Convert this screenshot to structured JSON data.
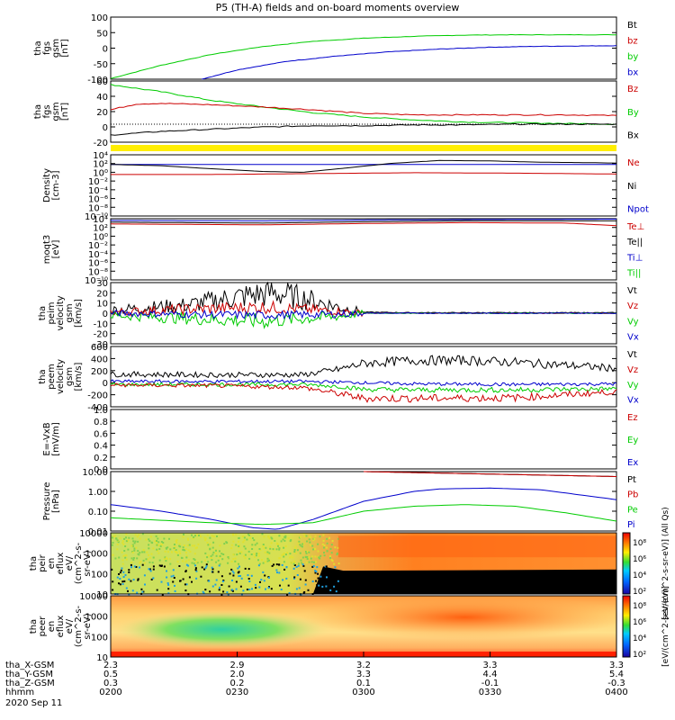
{
  "title": "P5 (TH-A) fields and on-board moments overview",
  "x_axis": {
    "tick_times": [
      "0200",
      "0230",
      "0300",
      "0330",
      "0400"
    ],
    "rows": [
      {
        "label": "tha_X-GSM",
        "values": [
          "2.3",
          "2.9",
          "3.2",
          "3.3",
          "3.3"
        ]
      },
      {
        "label": "tha_Y-GSM",
        "values": [
          "0.5",
          "2.0",
          "3.3",
          "4.4",
          "5.4"
        ]
      },
      {
        "label": "tha_Z-GSM",
        "values": [
          "0.3",
          "0.2",
          "0.1",
          "-0.1",
          "-0.3"
        ]
      },
      {
        "label": "hhmm",
        "values": [
          "0200",
          "0230",
          "0300",
          "0330",
          "0400"
        ]
      }
    ],
    "date": "2020 Sep 11"
  },
  "colors": {
    "black": "#000000",
    "red": "#cc0000",
    "green": "#00cc00",
    "blue": "#0000cc",
    "yellow": "#ffee00"
  },
  "chart_data": [
    {
      "type": "line",
      "ylabel": [
        "tha",
        "fgs",
        "gsm",
        "[nT]"
      ],
      "yticks": [
        "100",
        "50",
        "0",
        "-50",
        "-100"
      ],
      "ylim": [
        -100,
        100
      ],
      "legend": [
        {
          "text": "Bt",
          "color": "black"
        },
        {
          "text": "bz",
          "color": "red"
        },
        {
          "text": "by",
          "color": "green"
        },
        {
          "text": "bx",
          "color": "blue"
        }
      ],
      "series": [
        {
          "name": "by",
          "color": "green",
          "x": [
            0,
            0.1,
            0.2,
            0.3,
            0.4,
            0.5,
            0.6,
            0.7,
            0.8,
            1.0
          ],
          "y": [
            -98,
            -55,
            -20,
            5,
            22,
            32,
            38,
            42,
            43,
            43
          ]
        },
        {
          "name": "bx",
          "color": "blue",
          "x": [
            0.18,
            0.25,
            0.35,
            0.45,
            0.55,
            0.65,
            0.75,
            0.85,
            1.0
          ],
          "y": [
            -100,
            -70,
            -42,
            -25,
            -12,
            -3,
            3,
            6,
            8
          ]
        }
      ]
    },
    {
      "type": "line",
      "ylabel": [
        "tha",
        "fgs",
        "gsm",
        "[nT]"
      ],
      "yticks": [
        "60",
        "40",
        "20",
        "0",
        "-20"
      ],
      "ylim": [
        -25,
        60
      ],
      "legend": [
        {
          "text": "Bz",
          "color": "red"
        },
        {
          "text": "By",
          "color": "green"
        },
        {
          "text": "Bx",
          "color": "black"
        }
      ],
      "series": [
        {
          "name": "By",
          "color": "green",
          "x": [
            0,
            0.1,
            0.2,
            0.3,
            0.4,
            0.5,
            0.6,
            0.7,
            0.8,
            0.9,
            1.0
          ],
          "y": [
            55,
            45,
            33,
            24,
            16,
            10,
            6,
            3,
            2,
            1,
            0
          ]
        },
        {
          "name": "Bz",
          "color": "red",
          "x": [
            0,
            0.05,
            0.1,
            0.2,
            0.3,
            0.4,
            0.5,
            0.6,
            0.7,
            0.8,
            0.9,
            1.0
          ],
          "y": [
            20,
            28,
            29,
            27,
            24,
            20,
            15,
            13,
            13,
            13,
            13,
            12
          ]
        },
        {
          "name": "Bx",
          "color": "black",
          "x": [
            0,
            0.1,
            0.2,
            0.3,
            0.4,
            0.5,
            0.6,
            0.7,
            0.8,
            0.9,
            1.0
          ],
          "y": [
            -15,
            -10,
            -7,
            -4,
            -2,
            -2,
            -1,
            -1,
            0,
            0,
            0
          ]
        }
      ]
    },
    {
      "type": "bar",
      "note": "quality flag strip",
      "color": "yellow"
    },
    {
      "type": "line",
      "ylabel": [
        "Density",
        "[cm-3]"
      ],
      "yticks": [
        "10⁴",
        "10²",
        "10⁰",
        "10⁻²",
        "10⁻⁴",
        "10⁻⁶",
        "10⁻⁸",
        "10⁻¹⁰"
      ],
      "yscale": "log",
      "ylim": [
        -10,
        4
      ],
      "legend": [
        {
          "text": "Ne",
          "color": "red"
        },
        {
          "text": "Ni",
          "color": "black"
        },
        {
          "text": "Npot",
          "color": "blue"
        }
      ],
      "series": [
        {
          "name": "Npot",
          "color": "blue",
          "x": [
            0,
            1
          ],
          "y": [
            1.8,
            1.8
          ]
        },
        {
          "name": "Ni",
          "color": "black",
          "x": [
            0,
            0.1,
            0.2,
            0.3,
            0.38,
            0.45,
            0.55,
            0.65,
            0.75,
            0.85,
            0.95,
            1.0
          ],
          "y": [
            1.8,
            1.5,
            0.8,
            0.2,
            0,
            0.8,
            2.0,
            2.7,
            2.6,
            2.3,
            2.2,
            2.1
          ]
        },
        {
          "name": "Ne",
          "color": "red",
          "x": [
            0,
            0.2,
            0.4,
            0.6,
            0.8,
            1.0
          ],
          "y": [
            -0.5,
            -0.5,
            -0.3,
            -0.1,
            -0.2,
            -0.4
          ]
        }
      ]
    },
    {
      "type": "line",
      "ylabel": [
        "moqt3",
        "[eV]"
      ],
      "yticks": [
        "10⁴",
        "10²",
        "10⁰",
        "10⁻²",
        "10⁻⁴",
        "10⁻⁶",
        "10⁻⁸",
        "10⁻¹⁰"
      ],
      "yscale": "log",
      "ylim": [
        -10,
        4
      ],
      "legend": [
        {
          "text": "Te⊥",
          "color": "red"
        },
        {
          "text": "Te||",
          "color": "black"
        },
        {
          "text": "Ti⊥",
          "color": "blue"
        },
        {
          "text": "Ti||",
          "color": "green"
        }
      ],
      "series": [
        {
          "name": "Ti⊥",
          "color": "blue",
          "x": [
            0,
            0.3,
            0.5,
            0.7,
            1.0
          ],
          "y": [
            3.6,
            3.5,
            3.7,
            3.8,
            3.9
          ]
        },
        {
          "name": "Te||",
          "color": "black",
          "x": [
            0,
            0.3,
            0.5,
            0.7,
            1.0
          ],
          "y": [
            3.2,
            3.0,
            3.3,
            3.5,
            3.5
          ]
        },
        {
          "name": "Te⊥",
          "color": "red",
          "x": [
            0,
            0.3,
            0.5,
            0.7,
            0.9,
            1.0
          ],
          "y": [
            2.8,
            2.6,
            2.9,
            3.1,
            3.0,
            2.4
          ]
        }
      ]
    },
    {
      "type": "line",
      "ylabel": [
        "tha",
        "peim",
        "velocity",
        "gsm",
        "[km/s]"
      ],
      "yticks": [
        "30",
        "20",
        "10",
        "0",
        "-10",
        "-20",
        "-30"
      ],
      "ylim": [
        -30,
        30
      ],
      "legend": [
        {
          "text": "Vt",
          "color": "black"
        },
        {
          "text": "Vz",
          "color": "red"
        },
        {
          "text": "Vy",
          "color": "green"
        },
        {
          "text": "Vx",
          "color": "blue"
        }
      ],
      "series": [
        {
          "name": "Vt",
          "color": "black",
          "x": [
            0,
            0.15,
            0.25,
            0.32,
            0.38,
            0.45,
            0.5,
            0.6,
            1.0
          ],
          "y": [
            3,
            8,
            16,
            20,
            15,
            6,
            1,
            0.5,
            0.5
          ]
        },
        {
          "name": "Vz",
          "color": "red",
          "x": [
            0,
            0.15,
            0.3,
            0.45,
            0.5,
            1.0
          ],
          "y": [
            1,
            4,
            6,
            2,
            0,
            0
          ]
        },
        {
          "name": "Vy",
          "color": "green",
          "x": [
            0,
            0.15,
            0.3,
            0.45,
            0.5,
            1.0
          ],
          "y": [
            -2,
            -5,
            -8,
            -3,
            0,
            0
          ]
        },
        {
          "name": "Vx",
          "color": "blue",
          "x": [
            0,
            0.15,
            0.3,
            0.45,
            0.5,
            1.0
          ],
          "y": [
            0,
            -1,
            -2,
            -1,
            0,
            0
          ]
        }
      ]
    },
    {
      "type": "line",
      "ylabel": [
        "tha",
        "peem",
        "velocity",
        "gsm",
        "[km/s]"
      ],
      "yticks": [
        "600",
        "400",
        "200",
        "0",
        "-200",
        "-400"
      ],
      "ylim": [
        -400,
        600
      ],
      "legend": [
        {
          "text": "Vt",
          "color": "black"
        },
        {
          "text": "Vz",
          "color": "red"
        },
        {
          "text": "Vy",
          "color": "green"
        },
        {
          "text": "Vx",
          "color": "blue"
        }
      ],
      "series": [
        {
          "name": "Vt",
          "color": "black",
          "x": [
            0,
            0.2,
            0.38,
            0.45,
            0.5,
            0.6,
            0.7,
            0.8,
            0.9,
            1.0
          ],
          "y": [
            140,
            130,
            130,
            220,
            320,
            370,
            370,
            340,
            290,
            240
          ]
        },
        {
          "name": "Vx",
          "color": "blue",
          "x": [
            0,
            0.2,
            0.38,
            0.45,
            0.5,
            0.6,
            0.8,
            1.0
          ],
          "y": [
            20,
            20,
            20,
            10,
            0,
            -20,
            -30,
            -20
          ]
        },
        {
          "name": "Vy",
          "color": "green",
          "x": [
            0,
            0.2,
            0.38,
            0.45,
            0.5,
            0.6,
            0.8,
            1.0
          ],
          "y": [
            -30,
            -30,
            -30,
            -60,
            -110,
            -120,
            -120,
            -100
          ]
        },
        {
          "name": "Vz",
          "color": "red",
          "x": [
            0,
            0.2,
            0.38,
            0.45,
            0.5,
            0.6,
            0.8,
            1.0
          ],
          "y": [
            -40,
            -50,
            -80,
            -180,
            -260,
            -260,
            -250,
            -150
          ]
        }
      ]
    },
    {
      "type": "line",
      "ylabel": [
        "E=-VxB",
        "[mV/m]"
      ],
      "yticks": [
        "1.0",
        "0.8",
        "0.6",
        "0.4",
        "0.2",
        "0.0"
      ],
      "ylim": [
        0,
        1
      ],
      "legend": [
        {
          "text": "Ez",
          "color": "red"
        },
        {
          "text": "Ey",
          "color": "green"
        },
        {
          "text": "Ex",
          "color": "blue"
        }
      ],
      "series": []
    },
    {
      "type": "line",
      "ylabel": [
        "Pressure",
        "[nPa]"
      ],
      "yticks": [
        "10.00",
        "1.00",
        "0.10",
        "0.01"
      ],
      "yscale": "log",
      "ylim": [
        -2.3,
        1.3
      ],
      "legend": [
        {
          "text": "Pt",
          "color": "black"
        },
        {
          "text": "Pb",
          "color": "red"
        },
        {
          "text": "Pe",
          "color": "green"
        },
        {
          "text": "Pi",
          "color": "blue"
        }
      ],
      "series": [
        {
          "name": "Pt",
          "color": "black",
          "x": [
            0.5,
            1.0
          ],
          "y": [
            1.3,
            1.0
          ]
        },
        {
          "name": "Pb",
          "color": "red",
          "x": [
            0.5,
            1.0
          ],
          "y": [
            1.3,
            1.0
          ]
        },
        {
          "name": "Pi",
          "color": "blue",
          "x": [
            0,
            0.1,
            0.2,
            0.28,
            0.33,
            0.4,
            0.5,
            0.6,
            0.65,
            0.75,
            0.85,
            0.95,
            1.0
          ],
          "y": [
            -0.7,
            -1.1,
            -1.6,
            -2.1,
            -2.2,
            -1.6,
            -0.5,
            0.1,
            0.25,
            0.3,
            0.2,
            -0.2,
            -0.4
          ]
        },
        {
          "name": "Pe",
          "color": "green",
          "x": [
            0,
            0.2,
            0.3,
            0.4,
            0.5,
            0.6,
            0.7,
            0.8,
            0.9,
            1.0
          ],
          "y": [
            -1.5,
            -1.8,
            -1.9,
            -1.8,
            -1.1,
            -0.8,
            -0.7,
            -0.8,
            -1.2,
            -1.7
          ]
        }
      ]
    },
    {
      "type": "heatmap",
      "ylabel": [
        "tha",
        "peir",
        "en",
        "eflux",
        "eV/",
        "(cm^2-s-",
        "sr-eV)"
      ],
      "yticks": [
        "10000",
        "1000",
        "100",
        "10"
      ],
      "yscale": "log",
      "colorbar": {
        "ticks": [
          "10⁸",
          "10⁶",
          "10⁴",
          "10²"
        ],
        "label": "[eV/(cm^2-s-sr-eV)] (All Qs)"
      }
    },
    {
      "type": "heatmap",
      "ylabel": [
        "tha",
        "peer",
        "en",
        "eflux",
        "eV/",
        "(cm^2-s-",
        "sr-eV)"
      ],
      "yticks": [
        "10000",
        "1000",
        "100",
        "10"
      ],
      "yscale": "log",
      "colorbar": {
        "ticks": [
          "10⁸",
          "10⁶",
          "10⁴",
          "10²"
        ],
        "label": "[eV/(cm^2-s-sr-eV)]"
      }
    }
  ]
}
